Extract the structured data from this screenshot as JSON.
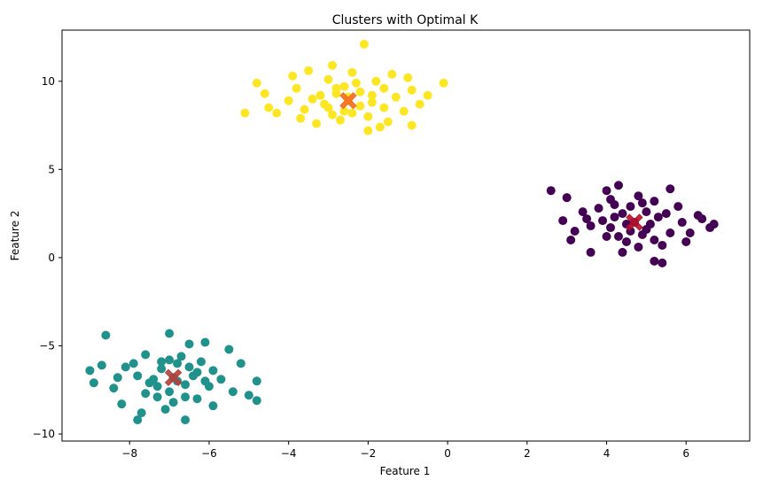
{
  "chart_data": {
    "type": "scatter",
    "title": "Clusters with Optimal K",
    "xlabel": "Feature 1",
    "ylabel": "Feature 2",
    "xlim": [
      -9.7,
      7.6
    ],
    "ylim": [
      -10.4,
      12.9
    ],
    "xticks": [
      -8,
      -6,
      -4,
      -2,
      0,
      2,
      4,
      6
    ],
    "yticks": [
      -10,
      -5,
      0,
      5,
      10
    ],
    "grid": false,
    "legend": "none",
    "colors": {
      "cluster_purple": "#440154",
      "cluster_teal": "#21918c",
      "cluster_yellow": "#fde725",
      "centroid_on_yellow": "#f26b21",
      "centroid_on_purple": "#b5122a",
      "centroid_on_teal": "#b5403a"
    },
    "series": [
      {
        "color": "#fde725",
        "points": [
          [
            -2.5,
            8.9
          ],
          [
            -2.8,
            9.3
          ],
          [
            -2.2,
            8.6
          ],
          [
            -3.1,
            8.7
          ],
          [
            -1.9,
            9.2
          ],
          [
            -2.6,
            9.7
          ],
          [
            -3.4,
            9.0
          ],
          [
            -1.6,
            8.5
          ],
          [
            -2.9,
            8.1
          ],
          [
            -2.3,
            9.9
          ],
          [
            -3.6,
            8.4
          ],
          [
            -1.3,
            9.1
          ],
          [
            -2.0,
            8.0
          ],
          [
            -3.0,
            10.1
          ],
          [
            -1.8,
            10.0
          ],
          [
            -3.8,
            9.6
          ],
          [
            -1.1,
            8.3
          ],
          [
            -2.7,
            7.8
          ],
          [
            -4.0,
            8.9
          ],
          [
            -0.9,
            9.5
          ],
          [
            -2.4,
            10.5
          ],
          [
            -3.3,
            7.6
          ],
          [
            -1.5,
            7.7
          ],
          [
            -4.3,
            8.2
          ],
          [
            -0.7,
            8.7
          ],
          [
            -2.1,
            12.1
          ],
          [
            -5.1,
            8.2
          ],
          [
            -4.8,
            9.9
          ],
          [
            -0.1,
            9.9
          ],
          [
            -3.9,
            10.3
          ],
          [
            -0.9,
            7.5
          ],
          [
            -2.0,
            7.2
          ],
          [
            -4.5,
            8.5
          ],
          [
            -1.0,
            10.2
          ],
          [
            -3.5,
            10.6
          ],
          [
            -2.9,
            10.9
          ],
          [
            -1.4,
            10.4
          ],
          [
            -4.6,
            9.3
          ],
          [
            -0.5,
            9.2
          ],
          [
            -3.7,
            7.9
          ],
          [
            -1.7,
            7.4
          ],
          [
            -2.6,
            8.3
          ],
          [
            -2.2,
            9.4
          ],
          [
            -3.0,
            8.5
          ],
          [
            -1.9,
            8.8
          ],
          [
            -2.8,
            9.6
          ],
          [
            -2.4,
            8.2
          ],
          [
            -3.2,
            9.2
          ],
          [
            -1.6,
            9.6
          ],
          [
            -2.5,
            9.1
          ]
        ]
      },
      {
        "color": "#440154",
        "points": [
          [
            4.7,
            2.0
          ],
          [
            4.4,
            2.5
          ],
          [
            5.0,
            1.6
          ],
          [
            4.1,
            1.7
          ],
          [
            5.3,
            2.3
          ],
          [
            4.6,
            2.9
          ],
          [
            3.9,
            2.1
          ],
          [
            5.6,
            1.4
          ],
          [
            4.3,
            1.2
          ],
          [
            4.9,
            3.1
          ],
          [
            3.6,
            1.8
          ],
          [
            5.9,
            2.0
          ],
          [
            4.5,
            0.9
          ],
          [
            4.1,
            3.3
          ],
          [
            5.2,
            3.2
          ],
          [
            3.4,
            2.6
          ],
          [
            6.1,
            1.4
          ],
          [
            4.8,
            0.6
          ],
          [
            3.2,
            1.5
          ],
          [
            6.3,
            2.4
          ],
          [
            4.0,
            3.8
          ],
          [
            4.4,
            0.3
          ],
          [
            5.4,
            0.7
          ],
          [
            2.9,
            2.1
          ],
          [
            6.6,
            1.7
          ],
          [
            2.6,
            3.8
          ],
          [
            3.1,
            1.0
          ],
          [
            6.7,
            1.9
          ],
          [
            5.4,
            -0.3
          ],
          [
            5.2,
            -0.2
          ],
          [
            5.6,
            3.9
          ],
          [
            3.6,
            0.3
          ],
          [
            3.0,
            3.4
          ],
          [
            6.0,
            0.9
          ],
          [
            4.3,
            4.1
          ],
          [
            4.9,
            1.3
          ],
          [
            4.2,
            2.3
          ],
          [
            5.0,
            2.6
          ],
          [
            4.6,
            1.5
          ],
          [
            5.1,
            1.9
          ],
          [
            3.8,
            2.8
          ],
          [
            5.5,
            2.5
          ],
          [
            4.0,
            1.2
          ],
          [
            4.8,
            3.5
          ],
          [
            5.8,
            2.9
          ],
          [
            3.5,
            2.2
          ],
          [
            6.4,
            2.2
          ],
          [
            4.5,
            1.9
          ],
          [
            5.2,
            1.0
          ],
          [
            4.2,
            3.0
          ]
        ]
      },
      {
        "color": "#21918c",
        "points": [
          [
            -6.9,
            -6.8
          ],
          [
            -7.2,
            -6.3
          ],
          [
            -6.6,
            -7.2
          ],
          [
            -7.5,
            -7.1
          ],
          [
            -6.3,
            -6.5
          ],
          [
            -7.0,
            -5.8
          ],
          [
            -7.8,
            -6.7
          ],
          [
            -6.0,
            -7.3
          ],
          [
            -7.3,
            -7.9
          ],
          [
            -6.7,
            -5.6
          ],
          [
            -8.1,
            -6.2
          ],
          [
            -5.7,
            -6.9
          ],
          [
            -6.9,
            -8.2
          ],
          [
            -7.6,
            -5.5
          ],
          [
            -6.2,
            -5.9
          ],
          [
            -8.4,
            -7.4
          ],
          [
            -5.4,
            -7.6
          ],
          [
            -7.1,
            -8.6
          ],
          [
            -8.7,
            -6.1
          ],
          [
            -5.2,
            -6.0
          ],
          [
            -6.5,
            -4.9
          ],
          [
            -7.7,
            -8.8
          ],
          [
            -5.9,
            -8.4
          ],
          [
            -9.0,
            -6.4
          ],
          [
            -4.8,
            -7.0
          ],
          [
            -8.6,
            -4.4
          ],
          [
            -7.0,
            -4.3
          ],
          [
            -4.8,
            -8.1
          ],
          [
            -6.6,
            -9.2
          ],
          [
            -7.8,
            -9.2
          ],
          [
            -8.9,
            -7.1
          ],
          [
            -5.5,
            -5.2
          ],
          [
            -6.1,
            -4.8
          ],
          [
            -8.2,
            -8.3
          ],
          [
            -5.0,
            -7.8
          ],
          [
            -6.8,
            -7.0
          ],
          [
            -7.4,
            -6.9
          ],
          [
            -6.4,
            -6.7
          ],
          [
            -7.0,
            -7.6
          ],
          [
            -6.1,
            -7.0
          ],
          [
            -7.9,
            -6.0
          ],
          [
            -6.5,
            -6.2
          ],
          [
            -7.3,
            -7.3
          ],
          [
            -6.8,
            -6.0
          ],
          [
            -7.6,
            -7.7
          ],
          [
            -5.9,
            -6.4
          ],
          [
            -8.3,
            -6.8
          ],
          [
            -6.3,
            -8.0
          ],
          [
            -7.2,
            -5.9
          ],
          [
            -6.6,
            -7.9
          ]
        ]
      }
    ],
    "centroids": [
      {
        "x": -2.5,
        "y": 8.9,
        "color": "#f26b21"
      },
      {
        "x": 4.7,
        "y": 2.0,
        "color": "#b5122a"
      },
      {
        "x": -6.9,
        "y": -6.8,
        "color": "#b5403a"
      }
    ]
  }
}
